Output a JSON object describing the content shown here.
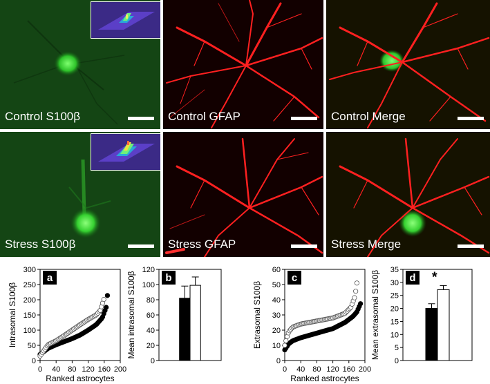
{
  "panels": [
    {
      "label": "Control S100β",
      "kind": "green-control"
    },
    {
      "label": "Control GFAP",
      "kind": "red-control"
    },
    {
      "label": "Control Merge",
      "kind": "merge-control"
    },
    {
      "label": "Stress S100β",
      "kind": "green-stress"
    },
    {
      "label": "Stress GFAP",
      "kind": "red-stress"
    },
    {
      "label": "Stress Merge",
      "kind": "merge-stress"
    }
  ],
  "colors": {
    "green": "#1fc21f",
    "red": "#ff1a1a",
    "inset_bg": "#3b2a86"
  },
  "chart_data": [
    {
      "letter": "a",
      "type": "scatter",
      "ylabel": "Intrasomal S100β",
      "xlabel": "Ranked astrocytes",
      "ylim": [
        0,
        300
      ],
      "xlim": [
        0,
        200
      ],
      "yticks": [
        0,
        50,
        100,
        150,
        200,
        250,
        300
      ],
      "xticks": [
        0,
        40,
        80,
        120,
        160,
        200
      ],
      "series": [
        {
          "marker": "filled",
          "n": 170,
          "x": [
            0,
            20,
            40,
            60,
            80,
            100,
            120,
            140,
            155,
            165,
            170
          ],
          "y": [
            20,
            40,
            52,
            62,
            72,
            84,
            100,
            118,
            140,
            175,
            240
          ]
        },
        {
          "marker": "open",
          "n": 160,
          "x": [
            0,
            20,
            40,
            60,
            80,
            100,
            120,
            140,
            150,
            160
          ],
          "y": [
            15,
            52,
            65,
            82,
            100,
            118,
            135,
            150,
            165,
            205
          ]
        }
      ]
    },
    {
      "letter": "b",
      "type": "bar",
      "ylabel": "Mean intrasomal S100β",
      "ylim": [
        0,
        120
      ],
      "yticks": [
        0,
        20,
        40,
        60,
        80,
        100,
        120
      ],
      "series": [
        {
          "marker": "filled",
          "value": 82,
          "error": 16
        },
        {
          "marker": "open",
          "value": 99,
          "error": 11
        }
      ]
    },
    {
      "letter": "c",
      "type": "scatter",
      "ylabel": "Extrasomal S100β",
      "xlabel": "Ranked astrocytes",
      "ylim": [
        0,
        60
      ],
      "xlim": [
        0,
        200
      ],
      "yticks": [
        0,
        10,
        20,
        30,
        40,
        50,
        60
      ],
      "xticks": [
        0,
        40,
        80,
        120,
        160,
        200
      ],
      "series": [
        {
          "marker": "filled",
          "n": 190,
          "x": [
            0,
            10,
            20,
            40,
            80,
            120,
            150,
            170,
            180,
            190
          ],
          "y": [
            7,
            11,
            13,
            15,
            18,
            21,
            25,
            29,
            32,
            38
          ]
        },
        {
          "marker": "open",
          "n": 180,
          "x": [
            0,
            5,
            10,
            20,
            40,
            80,
            120,
            150,
            165,
            175,
            180
          ],
          "y": [
            10,
            15,
            19,
            22,
            24,
            26,
            28,
            31,
            35,
            42,
            51
          ]
        }
      ]
    },
    {
      "letter": "d",
      "type": "bar",
      "ylabel": "Mean extrasomal S100β",
      "ylim": [
        0,
        35
      ],
      "yticks": [
        0,
        5,
        10,
        15,
        20,
        25,
        30,
        35
      ],
      "annotation": "*",
      "series": [
        {
          "marker": "filled",
          "value": 20,
          "error": 1.8
        },
        {
          "marker": "open",
          "value": 27.2,
          "error": 1.6
        }
      ]
    }
  ]
}
